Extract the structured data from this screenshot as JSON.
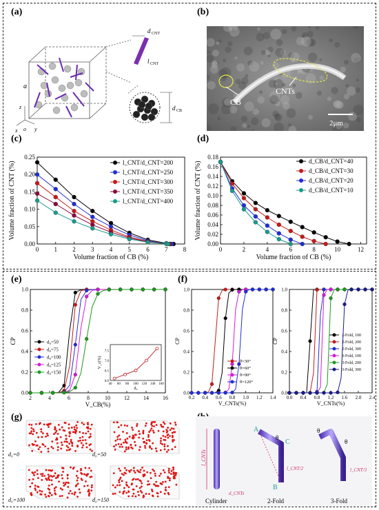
{
  "panels": {
    "a": {
      "label": "(a)",
      "a_axis": "a",
      "d_cnt": "d",
      "d_cnt_sub": "CNT",
      "l_cnt": "l",
      "l_cnt_sub": "CNT",
      "d_cb": "d",
      "d_cb_sub": "CB",
      "axes": [
        "x",
        "o",
        "y",
        "z"
      ]
    },
    "b": {
      "label": "(b)",
      "cb": "CB",
      "cnts": "CNTs",
      "scale": "2μm"
    },
    "c": {
      "label": "(c)"
    },
    "d": {
      "label": "(d)"
    },
    "e": {
      "label": "(e)"
    },
    "f": {
      "label": "(f)"
    },
    "g": {
      "label": "(g)",
      "titles": [
        "d₀=0",
        "d₀=50",
        "d₀=100",
        "d₀=150"
      ]
    },
    "h": {
      "label": "(h)",
      "captions": [
        "Cylinder",
        "2-Fold",
        "3-Fold"
      ],
      "points": [
        "A",
        "B",
        "C"
      ],
      "theta": "θ",
      "l_cnt": "l_CNTs",
      "l_half": "l_CNT/2",
      "l_third": "l_CNT/3",
      "d_cnt": "d_CNTs"
    }
  },
  "chart_data": [
    {
      "panel": "c",
      "type": "line",
      "xlabel": "Volume fraction of CB (%)",
      "ylabel": "Volume fraction of CNT (%)",
      "xlim": [
        0,
        8
      ],
      "ylim": [
        0,
        0.25
      ],
      "xticks": [
        "0",
        "1",
        "2",
        "3",
        "4",
        "5",
        "6",
        "7",
        "8"
      ],
      "yticks": [
        "0.00",
        "0.05",
        "0.10",
        "0.15",
        "0.20",
        "0.25"
      ],
      "legend": "top-right",
      "series": [
        {
          "name": "l_CNT/d_CNT=200",
          "color": "#000000",
          "x": [
            0,
            1,
            2,
            3,
            4,
            5,
            6,
            7,
            7.4
          ],
          "y": [
            0.235,
            0.185,
            0.135,
            0.095,
            0.06,
            0.032,
            0.012,
            0.002,
            0
          ]
        },
        {
          "name": "l_CNT/d_CNT=250",
          "color": "#1f2ed6",
          "x": [
            0,
            1,
            2,
            3,
            4,
            5,
            6,
            7,
            7.3
          ],
          "y": [
            0.2,
            0.158,
            0.115,
            0.078,
            0.05,
            0.026,
            0.009,
            0.001,
            0
          ]
        },
        {
          "name": "l_CNT/d_CNT=300",
          "color": "#c41a1a",
          "x": [
            0,
            1,
            2,
            3,
            4,
            5,
            6,
            7,
            7.2
          ],
          "y": [
            0.175,
            0.135,
            0.095,
            0.065,
            0.04,
            0.02,
            0.007,
            0.001,
            0
          ]
        },
        {
          "name": "l_CNT/d_CNT=350",
          "color": "#8b0a3a",
          "x": [
            0,
            1,
            2,
            3,
            4,
            5,
            6,
            7,
            7.2
          ],
          "y": [
            0.145,
            0.115,
            0.082,
            0.055,
            0.034,
            0.017,
            0.006,
            0.001,
            0
          ]
        },
        {
          "name": "l_CNT/d_CNT=400",
          "color": "#1a9a8c",
          "x": [
            0,
            1,
            2,
            3,
            4,
            5,
            6,
            7,
            7.1
          ],
          "y": [
            0.125,
            0.09,
            0.065,
            0.045,
            0.028,
            0.014,
            0.005,
            0.001,
            0
          ]
        }
      ]
    },
    {
      "panel": "d",
      "type": "line",
      "xlabel": "Volume fraction of CB (%)",
      "ylabel": "Volume fraction of CNT (%)",
      "xlim": [
        0,
        12.5
      ],
      "ylim": [
        0,
        0.18
      ],
      "xticks": [
        "0",
        "2",
        "4",
        "6",
        "8",
        "10",
        "12"
      ],
      "yticks": [
        "0.00",
        "0.02",
        "0.04",
        "0.06",
        "0.08",
        "0.10",
        "0.12",
        "0.14",
        "0.16",
        "0.18"
      ],
      "legend": "top-right",
      "series": [
        {
          "name": "d_CB/d_CNT=40",
          "color": "#000000",
          "x": [
            0,
            1,
            2,
            3,
            4,
            5,
            6,
            7,
            8,
            9,
            10,
            11
          ],
          "y": [
            0.17,
            0.13,
            0.105,
            0.085,
            0.07,
            0.058,
            0.046,
            0.035,
            0.024,
            0.014,
            0.005,
            0
          ]
        },
        {
          "name": "d_CB/d_CNT=30",
          "color": "#c41a1a",
          "x": [
            0,
            1,
            2,
            3,
            4,
            5,
            6,
            7,
            8,
            9
          ],
          "y": [
            0.17,
            0.125,
            0.095,
            0.072,
            0.055,
            0.04,
            0.027,
            0.015,
            0.006,
            0
          ]
        },
        {
          "name": "d_CB/d_CNT=20",
          "color": "#1f2ed6",
          "x": [
            0,
            1,
            2,
            3,
            4,
            5,
            6,
            7
          ],
          "y": [
            0.17,
            0.115,
            0.08,
            0.057,
            0.038,
            0.022,
            0.009,
            0
          ]
        },
        {
          "name": "d_CB/d_CNT=10",
          "color": "#1a9a8c",
          "x": [
            0,
            1,
            2,
            3,
            4,
            5,
            6
          ],
          "y": [
            0.17,
            0.11,
            0.072,
            0.045,
            0.025,
            0.01,
            0
          ]
        }
      ]
    },
    {
      "panel": "e",
      "type": "line",
      "xlabel": "V_CB(%)",
      "ylabel": "CP",
      "xlim": [
        2,
        16
      ],
      "ylim": [
        0,
        1.0
      ],
      "xticks": [
        "2",
        "4",
        "6",
        "8",
        "10",
        "12",
        "14",
        "16"
      ],
      "yticks": [
        "0.0",
        "0.2",
        "0.4",
        "0.6",
        "0.8",
        "1.0"
      ],
      "legend": "left",
      "series": [
        {
          "name": "d₀=50",
          "color": "#000000",
          "center": 6.0,
          "width": 0.55
        },
        {
          "name": "d₀=75",
          "color": "#c41a1a",
          "center": 6.3,
          "width": 0.6
        },
        {
          "name": "d₀=100",
          "color": "#1f2ed6",
          "center": 6.7,
          "width": 0.7
        },
        {
          "name": "d₀=125",
          "color": "#d61ad6",
          "center": 7.1,
          "width": 0.8
        },
        {
          "name": "d₀=150",
          "color": "#1a9a1a",
          "center": 7.8,
          "width": 1.1
        }
      ],
      "inset": {
        "xlabel": "d₀",
        "ylabel": "V_c(%)",
        "x": [
          50,
          75,
          100,
          125,
          150
        ],
        "y": [
          6.1,
          6.3,
          6.5,
          7.0,
          7.6
        ],
        "xticks": [
          "40",
          "60",
          "80",
          "100",
          "120",
          "140",
          "160"
        ],
        "yticks": [
          "6.0",
          "6.5",
          "7.0",
          "7.5"
        ]
      }
    },
    {
      "panel": "f1",
      "type": "line",
      "xlabel": "V_CNTs(%)",
      "ylabel": "CP",
      "xlim": [
        0.2,
        1.4
      ],
      "ylim": [
        0,
        1.0
      ],
      "xticks": [
        "0.2",
        "0.4",
        "0.6",
        "0.8",
        "1.0",
        "1.2",
        "1.4"
      ],
      "yticks": [
        "0.0",
        "0.2",
        "0.4",
        "0.6",
        "0.8",
        "1.0"
      ],
      "legend": "bottom-right",
      "series": [
        {
          "name": "θ=30°",
          "color": "#c41a1a",
          "center": 0.55,
          "width": 0.06
        },
        {
          "name": "θ=60°",
          "color": "#000000",
          "center": 0.68,
          "width": 0.06
        },
        {
          "name": "θ=90°",
          "color": "#d61ad6",
          "center": 0.82,
          "width": 0.06
        },
        {
          "name": "θ=120°",
          "color": "#1f2ed6",
          "center": 0.92,
          "width": 0.06
        }
      ]
    },
    {
      "panel": "f2",
      "type": "line",
      "xlabel": "V_CNTs(%)",
      "ylabel": "CP",
      "xlim": [
        0.0,
        2.4
      ],
      "ylim": [
        0,
        1.0
      ],
      "xticks": [
        "0.0",
        "0.4",
        "0.8",
        "1.2",
        "1.6",
        "2.0",
        "2.4"
      ],
      "yticks": [
        "0.0",
        "0.2",
        "0.4",
        "0.6",
        "0.8",
        "1.0"
      ],
      "legend": "right",
      "series": [
        {
          "name": "2-Fold, 100",
          "color": "#000000",
          "center": 0.6,
          "width": 0.04
        },
        {
          "name": "2-Fold, 200",
          "color": "#c41a1a",
          "center": 0.72,
          "width": 0.04
        },
        {
          "name": "2-Fold, 300",
          "color": "#1f2ed6",
          "center": 0.88,
          "width": 0.05
        },
        {
          "name": "3-Fold, 100",
          "color": "#d61ad6",
          "center": 0.95,
          "width": 0.05
        },
        {
          "name": "3-Fold, 200",
          "color": "#1a9a1a",
          "center": 1.15,
          "width": 0.06
        },
        {
          "name": "3-Fold, 300",
          "color": "#1a1a8c",
          "center": 1.55,
          "width": 0.08
        }
      ]
    }
  ]
}
